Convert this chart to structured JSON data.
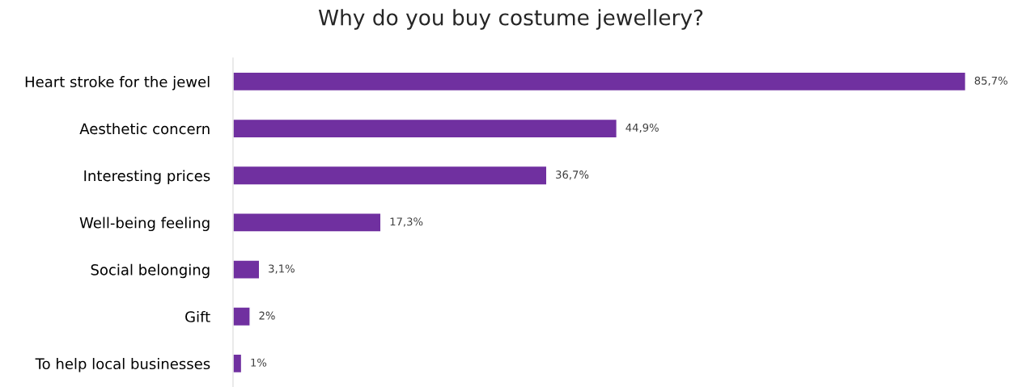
{
  "chart_data": {
    "type": "bar",
    "orientation": "horizontal",
    "title": "Why do you buy costume jewellery?",
    "categories": [
      "Heart stroke for the jewel",
      "Aesthetic concern",
      "Interesting prices",
      "Well-being feeling",
      "Social belonging",
      "Gift",
      "To help local businesses"
    ],
    "values": [
      85.7,
      44.9,
      36.7,
      17.3,
      3.1,
      2,
      1
    ],
    "value_labels": [
      "85,7%",
      "44,9%",
      "36,7%",
      "17,3%",
      "3,1%",
      "2%",
      "1%"
    ],
    "color": "#7030a0"
  }
}
